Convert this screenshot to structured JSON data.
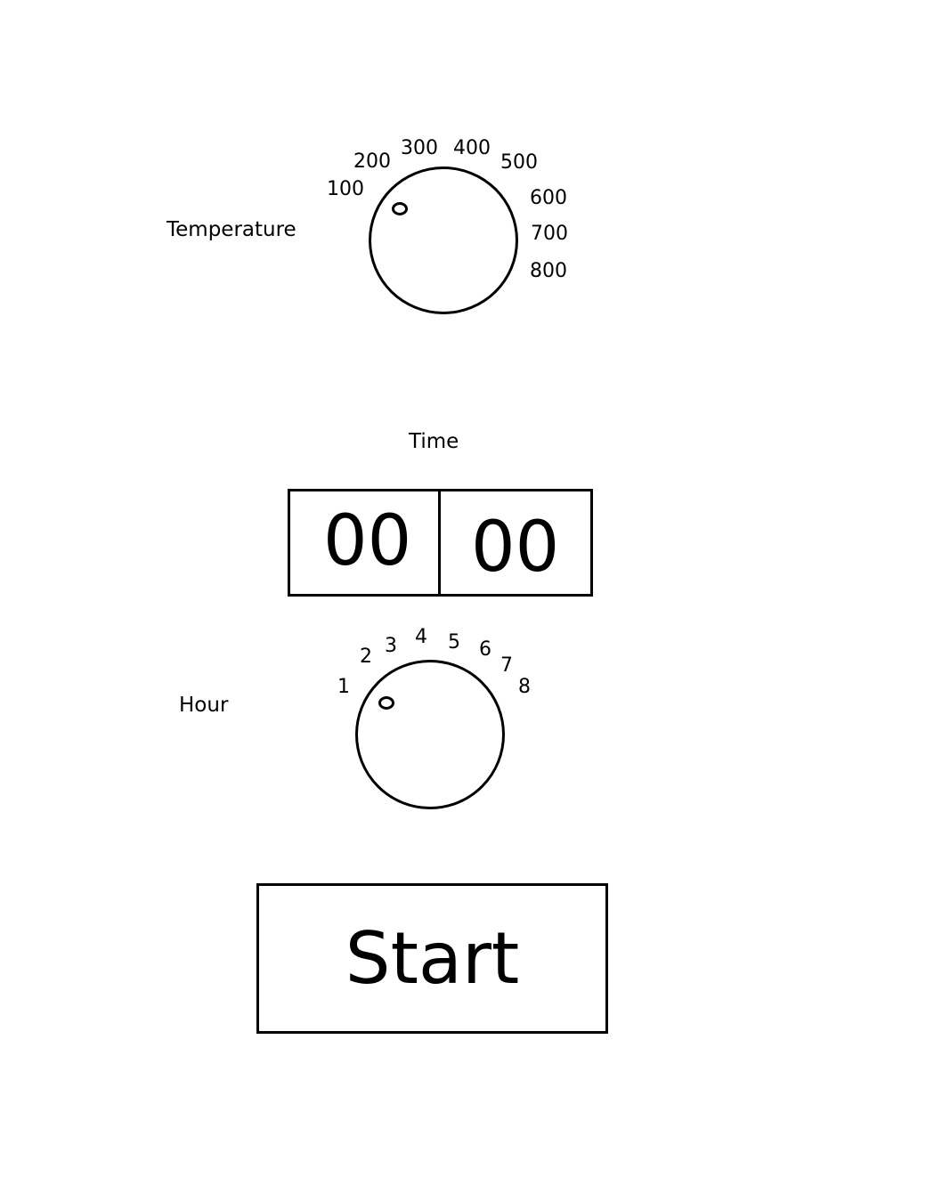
{
  "temperature": {
    "label": "Temperature",
    "ticks": [
      "100",
      "200",
      "300",
      "400",
      "500",
      "600",
      "700",
      "800"
    ],
    "selected": "100"
  },
  "time": {
    "label": "Time",
    "hours": "00",
    "minutes": "00"
  },
  "hour": {
    "label": "Hour",
    "ticks": [
      "1",
      "2",
      "3",
      "4",
      "5",
      "6",
      "7",
      "8"
    ],
    "selected": "1"
  },
  "start_button": {
    "label": "Start"
  }
}
